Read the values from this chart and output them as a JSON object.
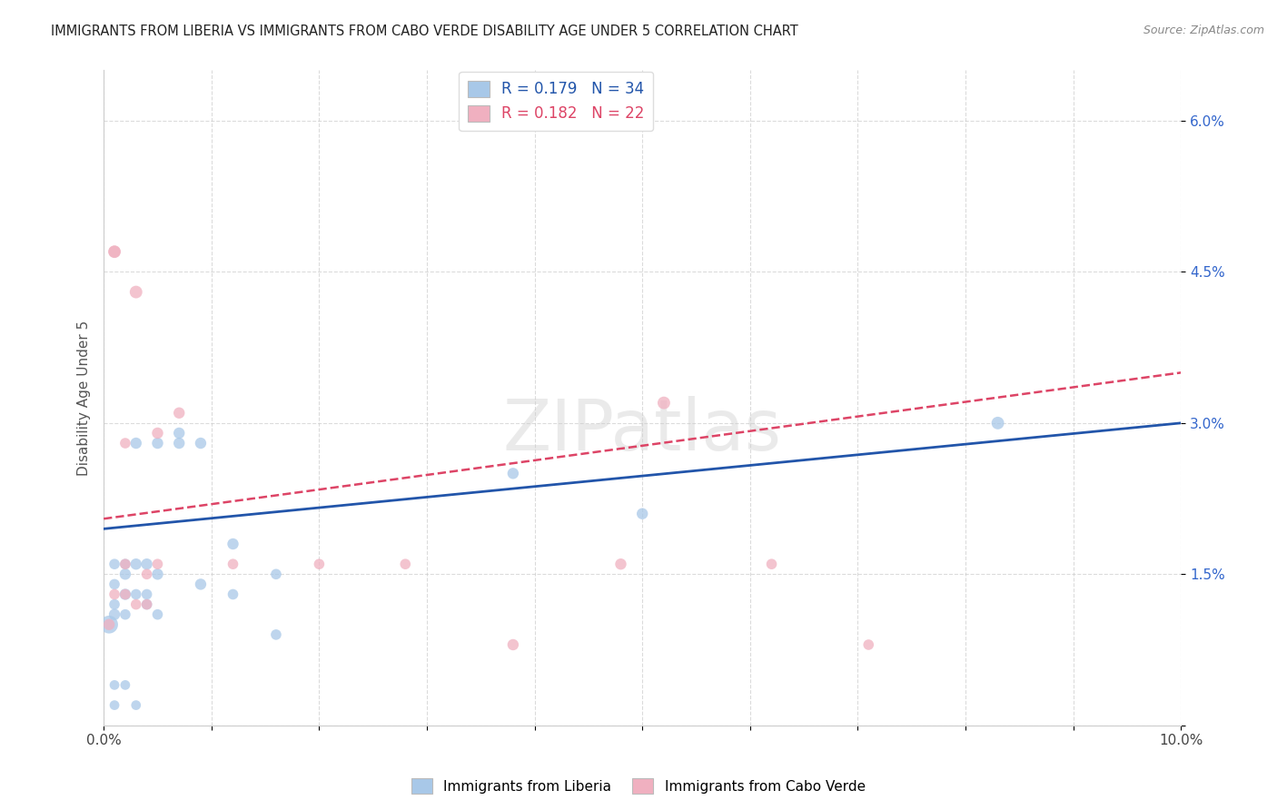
{
  "title": "IMMIGRANTS FROM LIBERIA VS IMMIGRANTS FROM CABO VERDE DISABILITY AGE UNDER 5 CORRELATION CHART",
  "source": "Source: ZipAtlas.com",
  "ylabel": "Disability Age Under 5",
  "xlim": [
    0.0,
    0.1
  ],
  "ylim": [
    0.0,
    0.065
  ],
  "xticks": [
    0.0,
    0.01,
    0.02,
    0.03,
    0.04,
    0.05,
    0.06,
    0.07,
    0.08,
    0.09,
    0.1
  ],
  "yticks": [
    0.0,
    0.015,
    0.03,
    0.045,
    0.06
  ],
  "ytick_labels": [
    "",
    "1.5%",
    "3.0%",
    "4.5%",
    "6.0%"
  ],
  "legend1_r": "0.179",
  "legend1_n": "34",
  "legend2_r": "0.182",
  "legend2_n": "22",
  "blue_scatter_color": "#a8c8e8",
  "pink_scatter_color": "#f0b0c0",
  "blue_line_color": "#2255aa",
  "pink_line_color": "#dd4466",
  "watermark": "ZIPatlas",
  "liberia_x": [
    0.0005,
    0.001,
    0.001,
    0.001,
    0.001,
    0.001,
    0.001,
    0.002,
    0.002,
    0.002,
    0.002,
    0.002,
    0.003,
    0.003,
    0.003,
    0.003,
    0.004,
    0.004,
    0.004,
    0.005,
    0.005,
    0.005,
    0.007,
    0.007,
    0.009,
    0.009,
    0.012,
    0.012,
    0.016,
    0.016,
    0.038,
    0.048,
    0.05,
    0.083
  ],
  "liberia_y": [
    0.01,
    0.011,
    0.012,
    0.014,
    0.016,
    0.004,
    0.002,
    0.011,
    0.013,
    0.015,
    0.016,
    0.004,
    0.013,
    0.016,
    0.028,
    0.002,
    0.013,
    0.016,
    0.012,
    0.011,
    0.015,
    0.028,
    0.028,
    0.029,
    0.014,
    0.028,
    0.013,
    0.018,
    0.009,
    0.015,
    0.025,
    0.06,
    0.021,
    0.03
  ],
  "liberia_sizes": [
    200,
    80,
    70,
    70,
    70,
    60,
    60,
    70,
    80,
    80,
    70,
    60,
    70,
    80,
    80,
    60,
    70,
    80,
    70,
    70,
    80,
    80,
    80,
    80,
    80,
    80,
    70,
    80,
    70,
    70,
    80,
    180,
    80,
    100
  ],
  "caboverde_x": [
    0.0005,
    0.001,
    0.001,
    0.001,
    0.002,
    0.002,
    0.002,
    0.003,
    0.003,
    0.004,
    0.004,
    0.005,
    0.005,
    0.007,
    0.012,
    0.02,
    0.028,
    0.038,
    0.048,
    0.052,
    0.062,
    0.071
  ],
  "caboverde_y": [
    0.01,
    0.047,
    0.047,
    0.013,
    0.013,
    0.016,
    0.028,
    0.043,
    0.012,
    0.012,
    0.015,
    0.029,
    0.016,
    0.031,
    0.016,
    0.016,
    0.016,
    0.008,
    0.016,
    0.032,
    0.016,
    0.008
  ],
  "caboverde_sizes": [
    80,
    100,
    90,
    70,
    70,
    70,
    70,
    100,
    70,
    70,
    70,
    80,
    70,
    80,
    70,
    70,
    70,
    80,
    80,
    100,
    70,
    70
  ]
}
